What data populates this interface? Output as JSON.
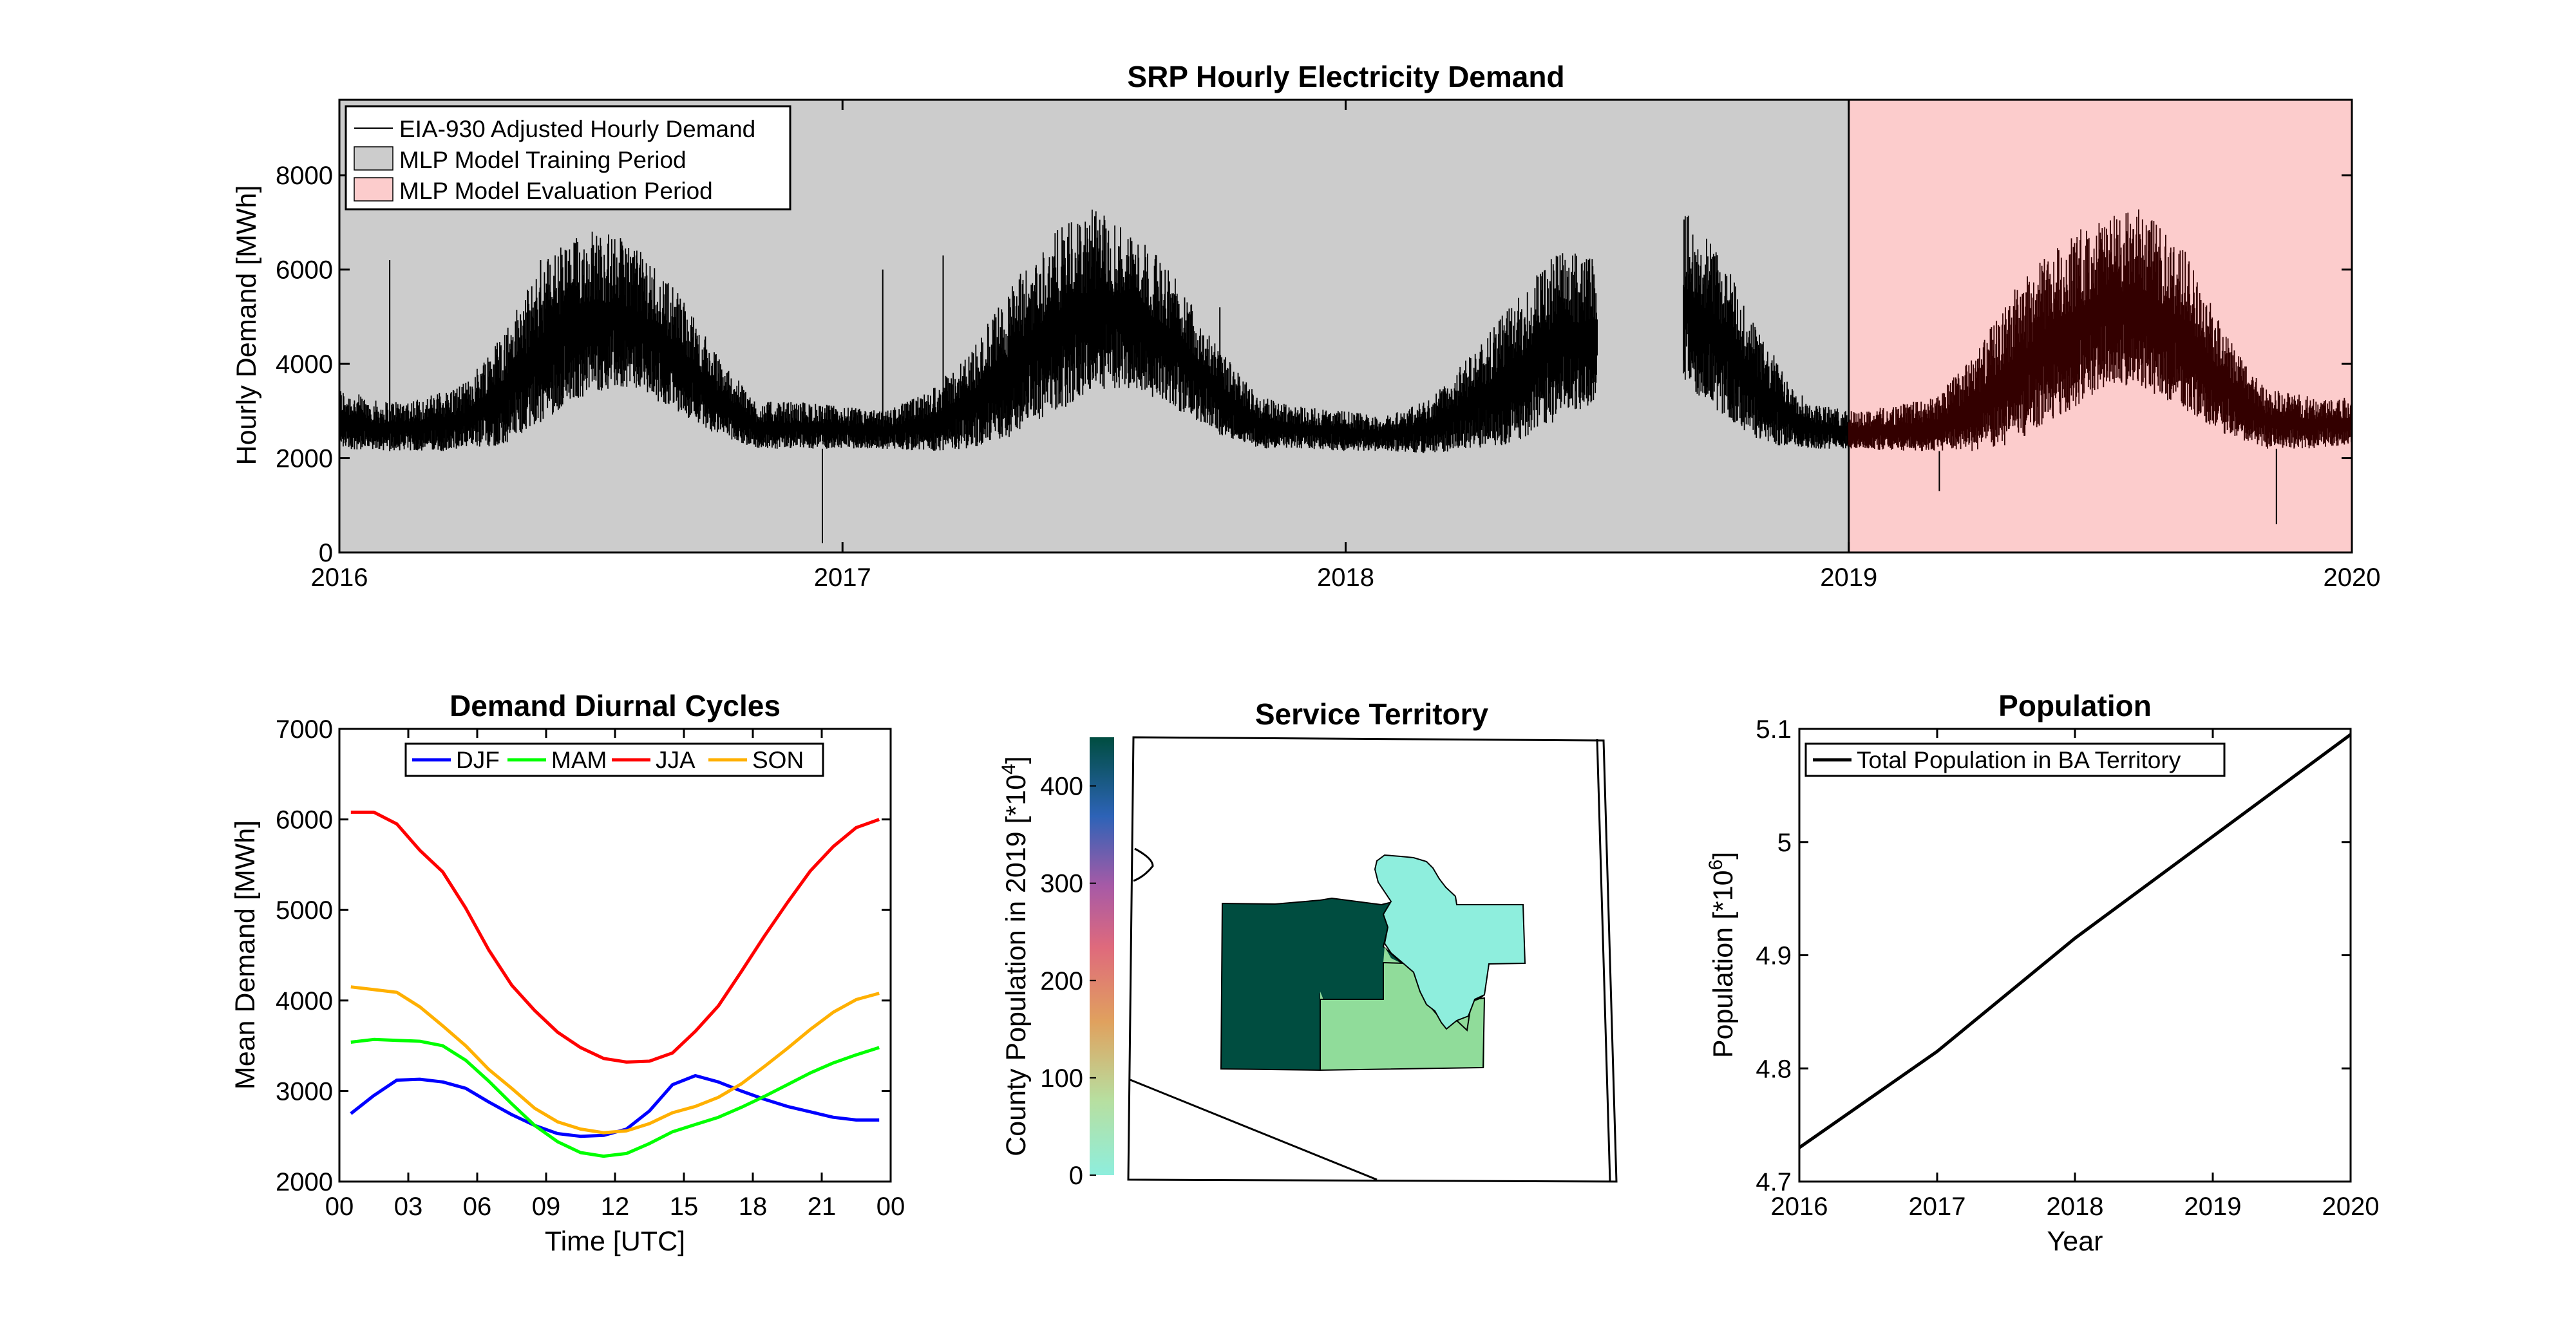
{
  "figure": {
    "top": {
      "title": "SRP Hourly Electricity Demand",
      "ylabel": "Hourly Demand [MWh]",
      "xticks": [
        "2016",
        "2017",
        "2018",
        "2019",
        "2020"
      ],
      "yticks": [
        "0",
        "2000",
        "4000",
        "6000",
        "8000"
      ],
      "legend": [
        "EIA-930 Adjusted Hourly Demand",
        "MLP Model Training Period",
        "MLP Model Evaluation Period"
      ],
      "colors": {
        "training": "#cccccc",
        "evaluation": "#fccccc",
        "evaluation_line": "#330000",
        "line": "#000000"
      }
    },
    "diurnal": {
      "title": "Demand Diurnal Cycles",
      "xlabel": "Time [UTC]",
      "ylabel": "Mean Demand [MWh]",
      "xticks": [
        "00",
        "03",
        "06",
        "09",
        "12",
        "15",
        "18",
        "21",
        "00"
      ],
      "yticks": [
        "2000",
        "3000",
        "4000",
        "5000",
        "6000",
        "7000"
      ],
      "colors": {
        "DJF": "#0000ff",
        "MAM": "#00ff00",
        "JJA": "#ff0000",
        "SON": "#ffb000"
      }
    },
    "territory": {
      "title": "Service Territory",
      "colorbar_label": "County Population in 2019 [*10^4]",
      "colorbar_ticks": [
        "0",
        "100",
        "200",
        "300",
        "400"
      ],
      "colors": {
        "county_high": "#004d40",
        "county_mid": "#90dc9a",
        "county_low": "#8eeedd"
      }
    },
    "population": {
      "title": "Population",
      "xlabel": "Year",
      "ylabel": "Population [*10^6]",
      "xticks": [
        "2016",
        "2017",
        "2018",
        "2019",
        "2020"
      ],
      "yticks": [
        "4.7",
        "4.8",
        "4.9",
        "5",
        "5.1"
      ]
    }
  },
  "chart_data": [
    {
      "type": "line",
      "title": "SRP Hourly Electricity Demand",
      "xlabel": "",
      "ylabel": "Hourly Demand [MWh]",
      "xlim": [
        2016,
        2020
      ],
      "ylim": [
        0,
        9600
      ],
      "legend_position": "top-left",
      "training_period": [
        2016,
        2019
      ],
      "evaluation_period": [
        2019,
        2020
      ],
      "envelope": {
        "x": [
          2016.0,
          2016.08,
          2016.17,
          2016.25,
          2016.33,
          2016.42,
          2016.5,
          2016.58,
          2016.67,
          2016.75,
          2016.83,
          2016.92,
          2017.0,
          2017.08,
          2017.17,
          2017.25,
          2017.33,
          2017.42,
          2017.5,
          2017.58,
          2017.67,
          2017.75,
          2017.83,
          2017.92,
          2018.0,
          2018.08,
          2018.17,
          2018.25,
          2018.33,
          2018.42,
          2018.5,
          2018.58,
          2018.67,
          2018.75,
          2018.83,
          2018.92,
          2019.0,
          2019.08,
          2019.17,
          2019.25,
          2019.33,
          2019.42,
          2019.5,
          2019.58,
          2019.67,
          2019.75,
          2019.83,
          2019.92,
          2020.0
        ],
        "min": [
          2200,
          2150,
          2150,
          2150,
          2300,
          2900,
          3400,
          3500,
          3000,
          2500,
          2200,
          2200,
          2200,
          2200,
          2150,
          2200,
          2400,
          2950,
          3400,
          3500,
          3000,
          2500,
          2200,
          2200,
          2150,
          2150,
          2100,
          2200,
          2300,
          2800,
          3200,
          null,
          3600,
          2900,
          2300,
          2200,
          2200,
          2150,
          2150,
          2150,
          2300,
          2900,
          3400,
          3500,
          3000,
          2500,
          2200,
          2200,
          2300
        ],
        "max": [
          3500,
          3200,
          3300,
          3600,
          4800,
          6400,
          6900,
          6600,
          5600,
          4200,
          3200,
          3200,
          3100,
          3000,
          3400,
          4200,
          5600,
          6800,
          7300,
          6800,
          5800,
          4300,
          3300,
          3100,
          3000,
          2900,
          3300,
          4200,
          5300,
          6400,
          6300,
          null,
          7300,
          6300,
          4500,
          3200,
          3000,
          3100,
          3300,
          4200,
          5600,
          6600,
          7100,
          7300,
          6400,
          4600,
          3500,
          3300,
          3300
        ]
      },
      "spikes": [
        {
          "x": 2016.1,
          "y": 6200
        },
        {
          "x": 2016.4,
          "y": 6200
        },
        {
          "x": 2016.96,
          "y": 200
        },
        {
          "x": 2017.08,
          "y": 6000
        },
        {
          "x": 2017.2,
          "y": 6300
        },
        {
          "x": 2017.75,
          "y": 5200
        },
        {
          "x": 2019.18,
          "y": 1300
        },
        {
          "x": 2019.85,
          "y": 600
        }
      ]
    },
    {
      "type": "line",
      "title": "Demand Diurnal Cycles",
      "xlabel": "Time [UTC]",
      "ylabel": "Mean Demand [MWh]",
      "xlim": [
        0,
        24
      ],
      "ylim": [
        2000,
        7000
      ],
      "legend_position": "top",
      "x": [
        0.5,
        1.5,
        2.5,
        3.5,
        4.5,
        5.5,
        6.5,
        7.5,
        8.5,
        9.5,
        10.5,
        11.5,
        12.5,
        13.5,
        14.5,
        15.5,
        16.5,
        17.5,
        18.5,
        19.5,
        20.5,
        21.5,
        22.5,
        23.5
      ],
      "series": [
        {
          "name": "DJF",
          "values": [
            2750,
            2950,
            3120,
            3130,
            3100,
            3030,
            2880,
            2740,
            2620,
            2530,
            2500,
            2510,
            2580,
            2780,
            3070,
            3170,
            3100,
            3000,
            2910,
            2830,
            2770,
            2710,
            2680,
            2680
          ]
        },
        {
          "name": "MAM",
          "values": [
            3540,
            3570,
            3560,
            3550,
            3500,
            3340,
            3110,
            2860,
            2620,
            2440,
            2320,
            2280,
            2310,
            2420,
            2550,
            2630,
            2710,
            2820,
            2940,
            3070,
            3200,
            3310,
            3400,
            3480
          ]
        },
        {
          "name": "JJA",
          "values": [
            6080,
            6080,
            5950,
            5660,
            5420,
            5020,
            4560,
            4170,
            3890,
            3650,
            3480,
            3360,
            3320,
            3330,
            3420,
            3660,
            3940,
            4320,
            4710,
            5080,
            5430,
            5700,
            5910,
            6000
          ]
        },
        {
          "name": "SON",
          "values": [
            4150,
            4120,
            4090,
            3930,
            3720,
            3500,
            3240,
            3030,
            2810,
            2660,
            2580,
            2540,
            2560,
            2640,
            2760,
            2830,
            2930,
            3080,
            3270,
            3470,
            3680,
            3870,
            4010,
            4080
          ]
        }
      ]
    },
    {
      "type": "line",
      "title": "Population",
      "xlabel": "Year",
      "ylabel": "Population [*10^6]",
      "xlim": [
        2016,
        2020
      ],
      "ylim": [
        4.7,
        5.1
      ],
      "legend_position": "top-left",
      "x": [
        2016,
        2017,
        2018,
        2019,
        2020
      ],
      "series": [
        {
          "name": "Total Population in BA Territory",
          "values": [
            4.73,
            4.815,
            4.915,
            5.005,
            5.095
          ]
        }
      ]
    }
  ]
}
